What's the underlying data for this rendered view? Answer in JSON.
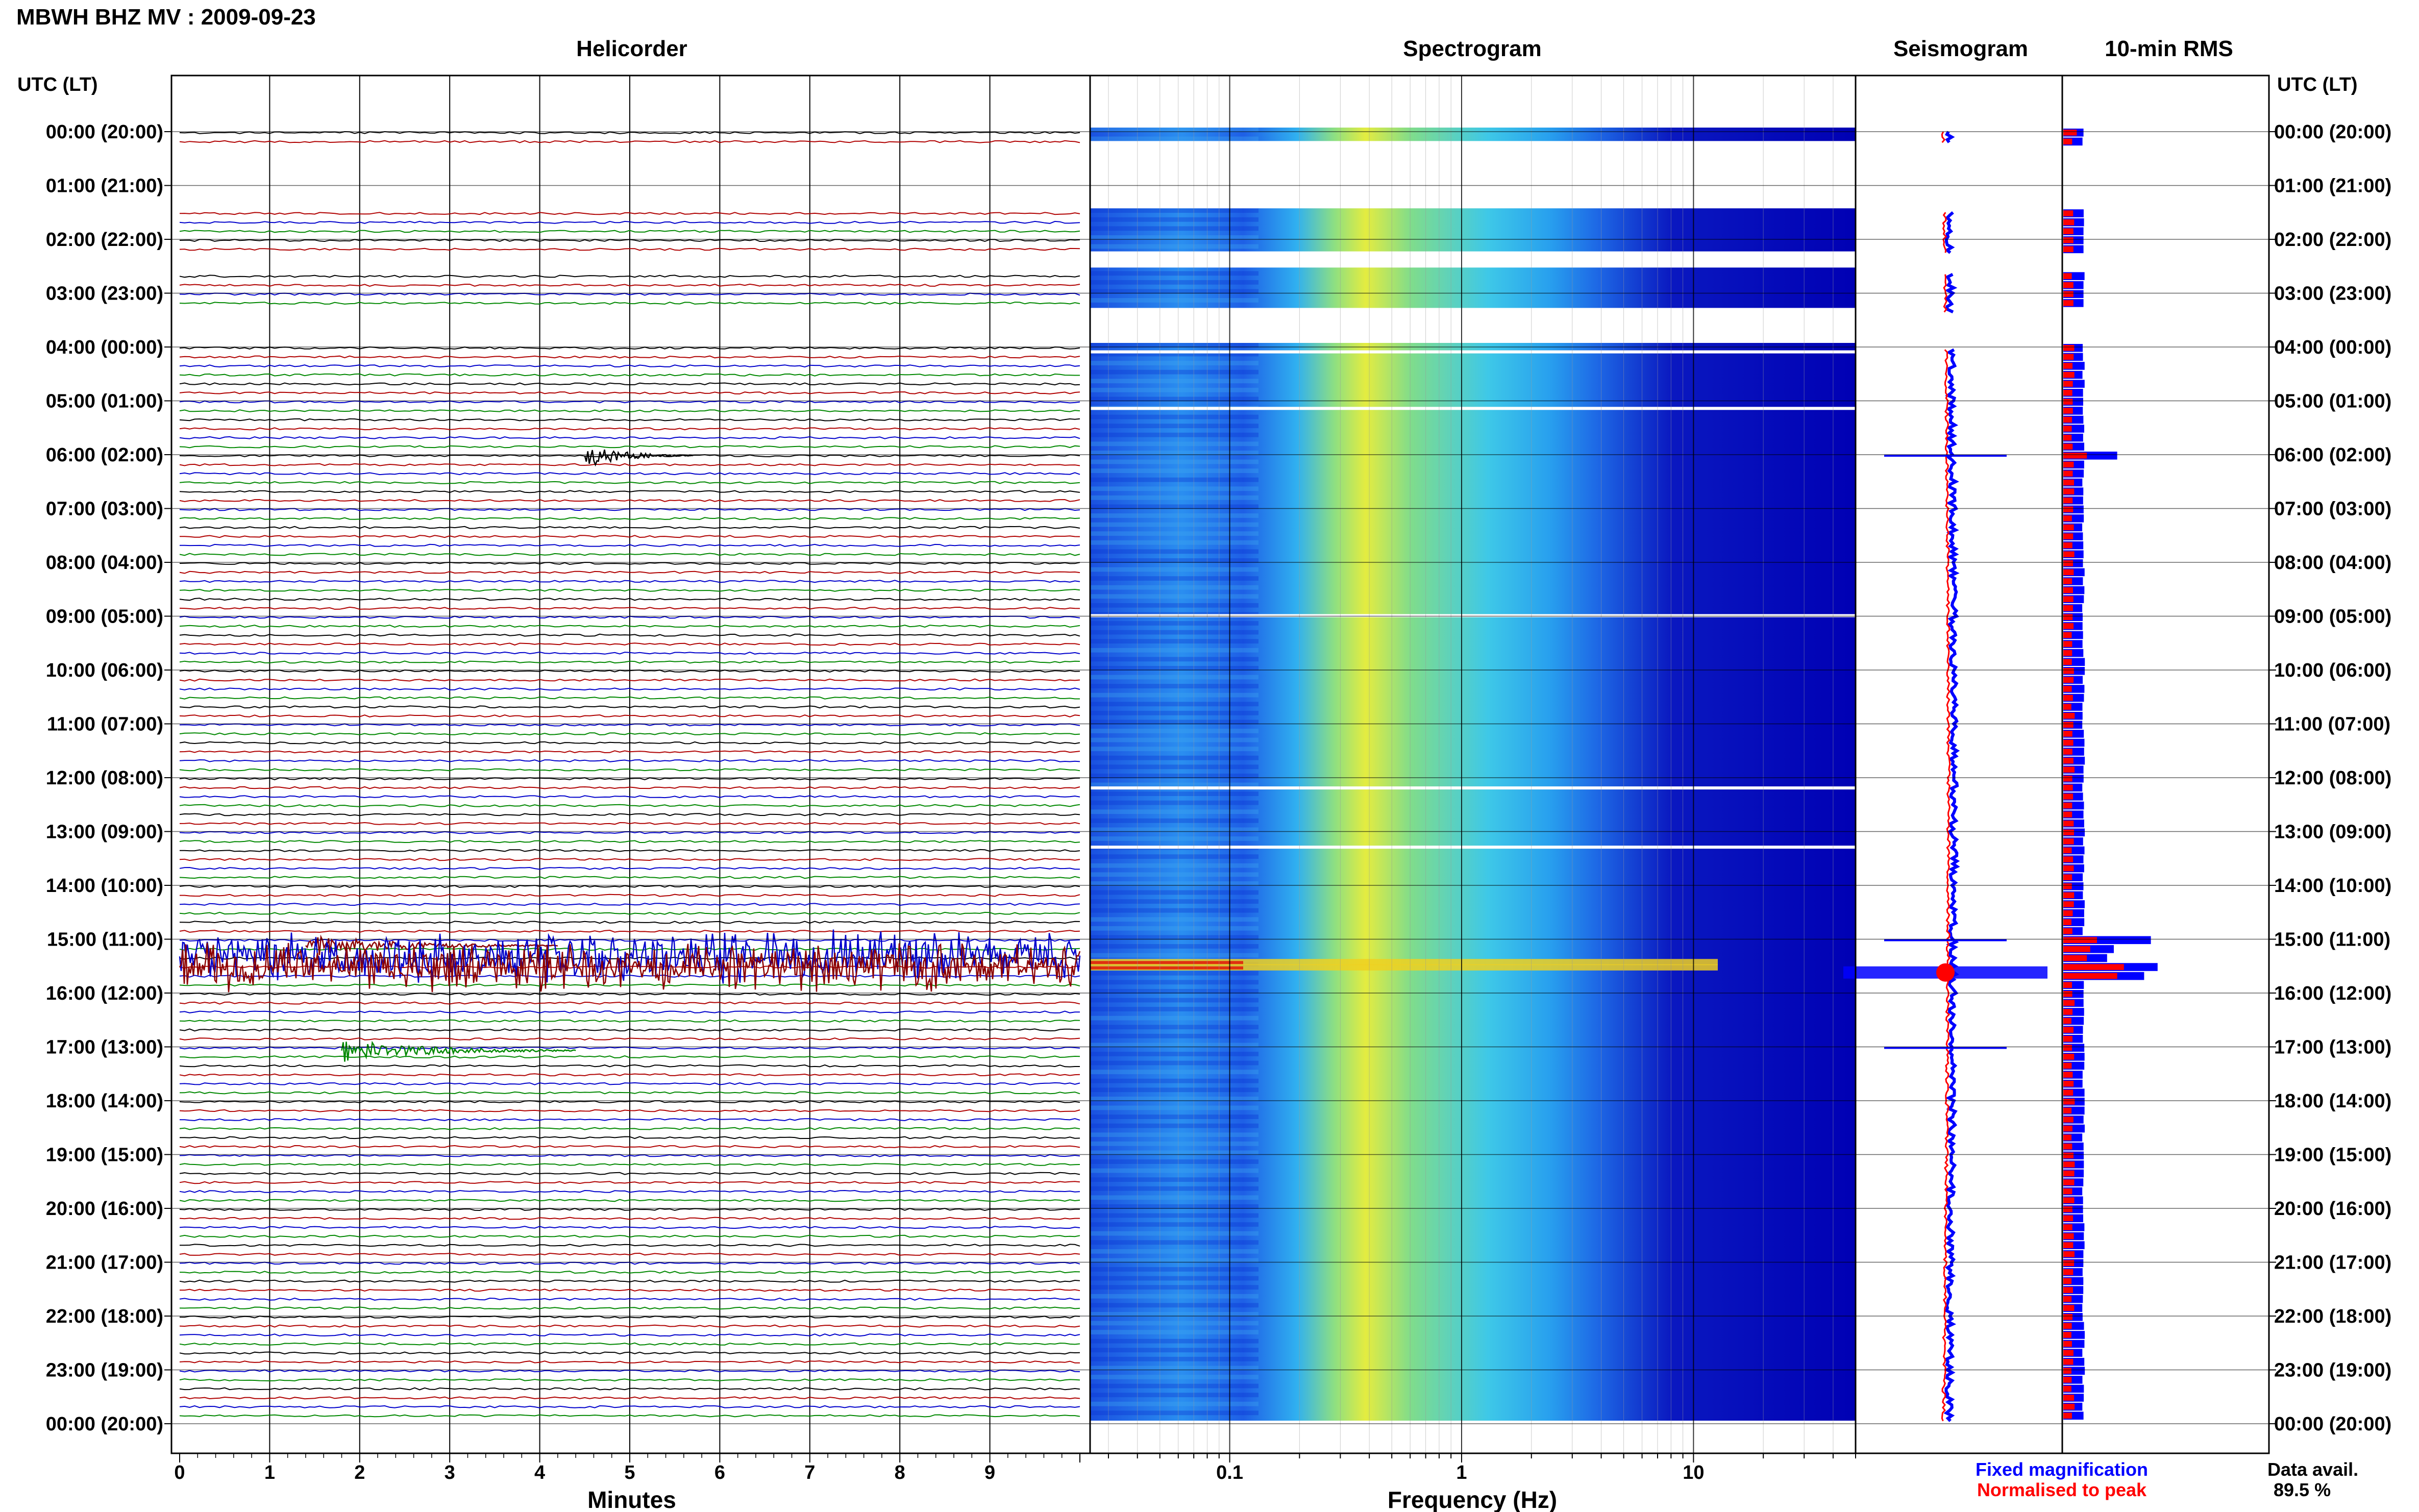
{
  "page_title": "MBWH BHZ MV : 2009-09-23",
  "panels": {
    "helicorder": "Helicorder",
    "spectrogram": "Spectrogram",
    "seismogram": "Seismogram",
    "rms": "10-min RMS"
  },
  "utc_header_left": "UTC (LT)",
  "utc_header_right": "UTC (LT)",
  "hour_labels": [
    "00:00 (20:00)",
    "01:00 (21:00)",
    "02:00 (22:00)",
    "03:00 (23:00)",
    "04:00 (00:00)",
    "05:00 (01:00)",
    "06:00 (02:00)",
    "07:00 (03:00)",
    "08:00 (04:00)",
    "09:00 (05:00)",
    "10:00 (06:00)",
    "11:00 (07:00)",
    "12:00 (08:00)",
    "13:00 (09:00)",
    "14:00 (10:00)",
    "15:00 (11:00)",
    "16:00 (12:00)",
    "17:00 (13:00)",
    "18:00 (14:00)",
    "19:00 (15:00)",
    "20:00 (16:00)",
    "21:00 (17:00)",
    "22:00 (18:00)",
    "23:00 (19:00)",
    "00:00 (20:00)"
  ],
  "helicorder_xlabel": "Minutes",
  "helicorder_ticks": [
    "0",
    "1",
    "2",
    "3",
    "4",
    "5",
    "6",
    "7",
    "8",
    "9"
  ],
  "spectrogram_xlabel": "Frequency (Hz)",
  "spectrogram_ticks": [
    "0.1",
    "1",
    "10"
  ],
  "legend": {
    "fixed": "Fixed magnification",
    "fixed_color": "#0000ff",
    "normalised": "Normalised to peak",
    "normalised_color": "#ff0000"
  },
  "data_avail_label": "Data avail.",
  "data_avail_value": "89.5 %",
  "colors": {
    "trace_cycle": [
      "#000000",
      "#b00000",
      "#0000cc",
      "#008800"
    ],
    "spectrogram_low": "#0000c8",
    "spectrogram_mid": "#20c8e8",
    "spectrogram_high": "#e8e820",
    "rms_fixed": "#0000ff",
    "rms_norm": "#ff0000"
  },
  "chart_data": [
    {
      "type": "line",
      "title": "Helicorder",
      "xlabel": "Minutes",
      "x_ticks": [
        0,
        1,
        2,
        3,
        4,
        5,
        6,
        7,
        8,
        9
      ],
      "xlim": [
        0,
        10
      ],
      "rows_per_hour": 6,
      "data_gaps_hours": [
        [
          0.25,
          1.5
        ],
        [
          2.3,
          2.6
        ],
        [
          3.35,
          4.0
        ]
      ],
      "events": [
        {
          "hour": 6.0,
          "start_min": 4.5,
          "end_min": 5.7,
          "amplitude": "moderate"
        },
        {
          "hour": 15.1,
          "start_min": 1.4,
          "end_min": 4.2,
          "amplitude": "moderate"
        },
        {
          "hour": 15.3,
          "start_min": 0.0,
          "end_min": 10.0,
          "amplitude": "large"
        },
        {
          "hour": 15.5,
          "start_min": 0.0,
          "end_min": 10.0,
          "amplitude": "large"
        },
        {
          "hour": 17.05,
          "start_min": 1.8,
          "end_min": 4.4,
          "amplitude": "moderate"
        }
      ]
    },
    {
      "type": "heatmap",
      "title": "Spectrogram",
      "xlabel": "Frequency (Hz)",
      "x_scale": "log",
      "xlim": [
        0.025,
        50
      ],
      "x_ticks": [
        0.1,
        1,
        10
      ],
      "peak_band_hz": [
        0.2,
        0.3
      ],
      "strong_rows_hours": [
        15.5,
        15.6
      ]
    },
    {
      "type": "line",
      "title": "Seismogram",
      "series": [
        {
          "name": "Fixed magnification",
          "color": "#0000ff"
        },
        {
          "name": "Normalised to peak",
          "color": "#ff0000"
        }
      ],
      "events_hours": [
        6.0,
        15.0,
        15.6,
        17.0
      ]
    },
    {
      "type": "bar",
      "title": "10-min RMS",
      "orientation": "horizontal",
      "series": [
        {
          "name": "Fixed magnification",
          "color": "#0000ff"
        },
        {
          "name": "Normalised to peak",
          "color": "#ff0000"
        }
      ],
      "rms_points": [
        [
          0.0,
          0.2,
          0.3
        ],
        [
          0.1,
          0.2,
          0.3
        ],
        [
          1.8,
          0.15,
          0.3
        ],
        [
          1.9,
          0.15,
          0.3
        ],
        [
          2.0,
          0.15,
          0.3
        ],
        [
          2.1,
          0.15,
          0.3
        ],
        [
          2.2,
          0.15,
          0.3
        ],
        [
          2.8,
          0.15,
          0.3
        ],
        [
          2.9,
          0.15,
          0.3
        ],
        [
          3.0,
          0.15,
          0.3
        ],
        [
          3.1,
          0.15,
          0.3
        ],
        [
          3.2,
          0.15,
          0.3
        ],
        [
          6.0,
          0.35,
          0.8
        ],
        [
          15.0,
          0.5,
          1.3
        ],
        [
          15.15,
          0.4,
          0.75
        ],
        [
          15.3,
          0.35,
          0.65
        ],
        [
          15.5,
          0.9,
          1.4
        ],
        [
          15.6,
          0.95,
          1.35
        ],
        [
          15.7,
          0.8,
          1.2
        ],
        [
          17.05,
          0.6,
          1.1
        ]
      ],
      "data_availability_percent": 89.5
    }
  ]
}
